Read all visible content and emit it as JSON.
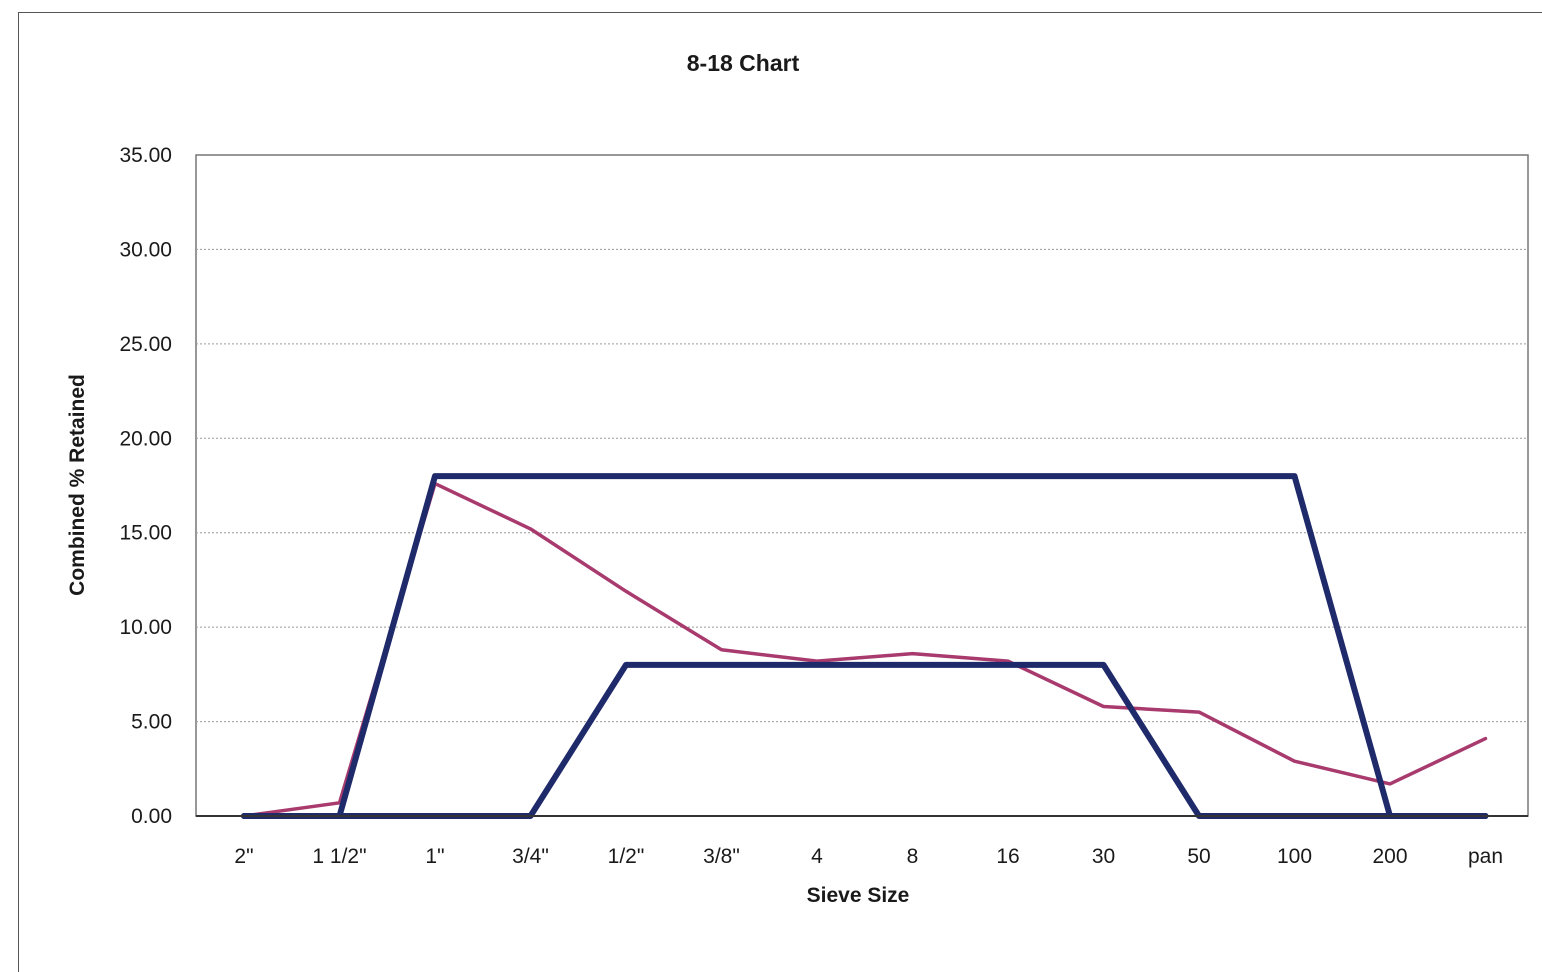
{
  "chart_data": {
    "type": "line",
    "title": "8-18 Chart",
    "xlabel": "Sieve Size",
    "ylabel": "Combined % Retained",
    "categories": [
      "2\"",
      "1 1/2\"",
      "1\"",
      "3/4\"",
      "1/2\"",
      "3/8\"",
      "4",
      "8",
      "16",
      "30",
      "50",
      "100",
      "200",
      "pan"
    ],
    "ylim": [
      0,
      35
    ],
    "yticks": [
      "0.00",
      "5.00",
      "10.00",
      "15.00",
      "20.00",
      "25.00",
      "30.00",
      "35.00"
    ],
    "grid": true,
    "series": [
      {
        "color": "#a83a6e",
        "values": [
          0.0,
          0.7,
          17.6,
          15.2,
          11.9,
          8.8,
          8.2,
          8.6,
          8.2,
          5.8,
          5.5,
          2.9,
          1.7,
          4.1
        ]
      },
      {
        "color": "#1f2a6b",
        "values": [
          0,
          0,
          18,
          18,
          18,
          18,
          18,
          18,
          18,
          18,
          18,
          18,
          0,
          0
        ]
      },
      {
        "color": "#1f2a6b",
        "values": [
          0,
          0,
          0,
          0,
          8,
          8,
          8,
          8,
          8,
          8,
          0,
          0,
          0,
          0
        ]
      }
    ]
  }
}
